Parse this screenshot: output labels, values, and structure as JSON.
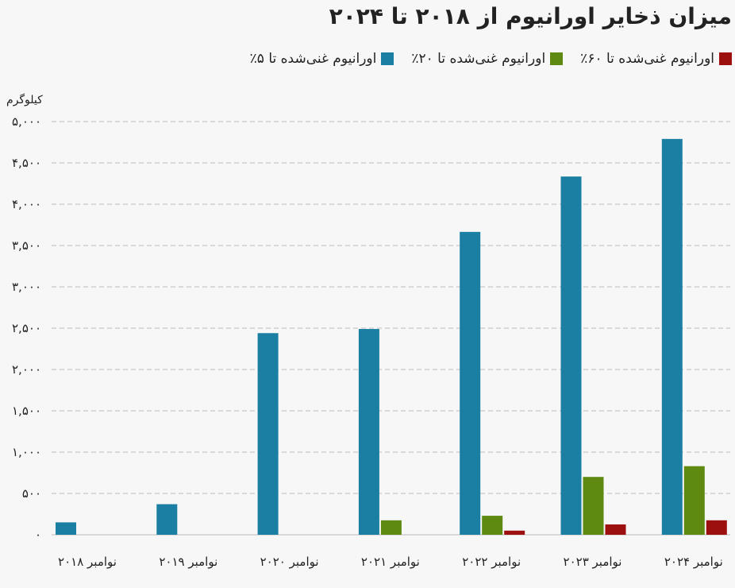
{
  "chart_data": {
    "type": "bar",
    "title": "میزان ذخایر اورانیوم از ۲۰۱۸ تا ۲۰۲۴",
    "ylabel": "کیلوگرم",
    "xlabel": "",
    "ylim": [
      0,
      5000
    ],
    "yticks": [
      0,
      500,
      1000,
      1500,
      2000,
      2500,
      3000,
      3500,
      4000,
      4500,
      5000
    ],
    "ytick_labels": [
      "۰",
      "۵۰۰",
      "۱,۰۰۰",
      "۱,۵۰۰",
      "۲,۰۰۰",
      "۲,۵۰۰",
      "۳,۰۰۰",
      "۳,۵۰۰",
      "۴,۰۰۰",
      "۴,۵۰۰",
      "۵,۰۰۰"
    ],
    "categories": [
      "نوامبر ۲۰۱۸",
      "نوامبر ۲۰۱۹",
      "نوامبر ۲۰۲۰",
      "نوامبر ۲۰۲۱",
      "نوامبر ۲۰۲۲",
      "نوامبر ۲۰۲۳",
      "نوامبر ۲۰۲۴"
    ],
    "series": [
      {
        "name": "اورانیوم غنی‌شده تا ۵٪",
        "color": "#1a7fa3",
        "values": [
          150,
          370,
          2440,
          2490,
          3665,
          4335,
          4790
        ]
      },
      {
        "name": "اورانیوم غنی‌شده تا ۲۰٪",
        "color": "#5e8a12",
        "values": [
          0,
          0,
          0,
          175,
          230,
          700,
          830
        ]
      },
      {
        "name": "اورانیوم غنی‌شده تا ۶۰٪",
        "color": "#9c1010",
        "values": [
          0,
          0,
          0,
          0,
          50,
          125,
          175
        ]
      }
    ],
    "grid": "horizontal dashed",
    "legend": "top-right"
  }
}
